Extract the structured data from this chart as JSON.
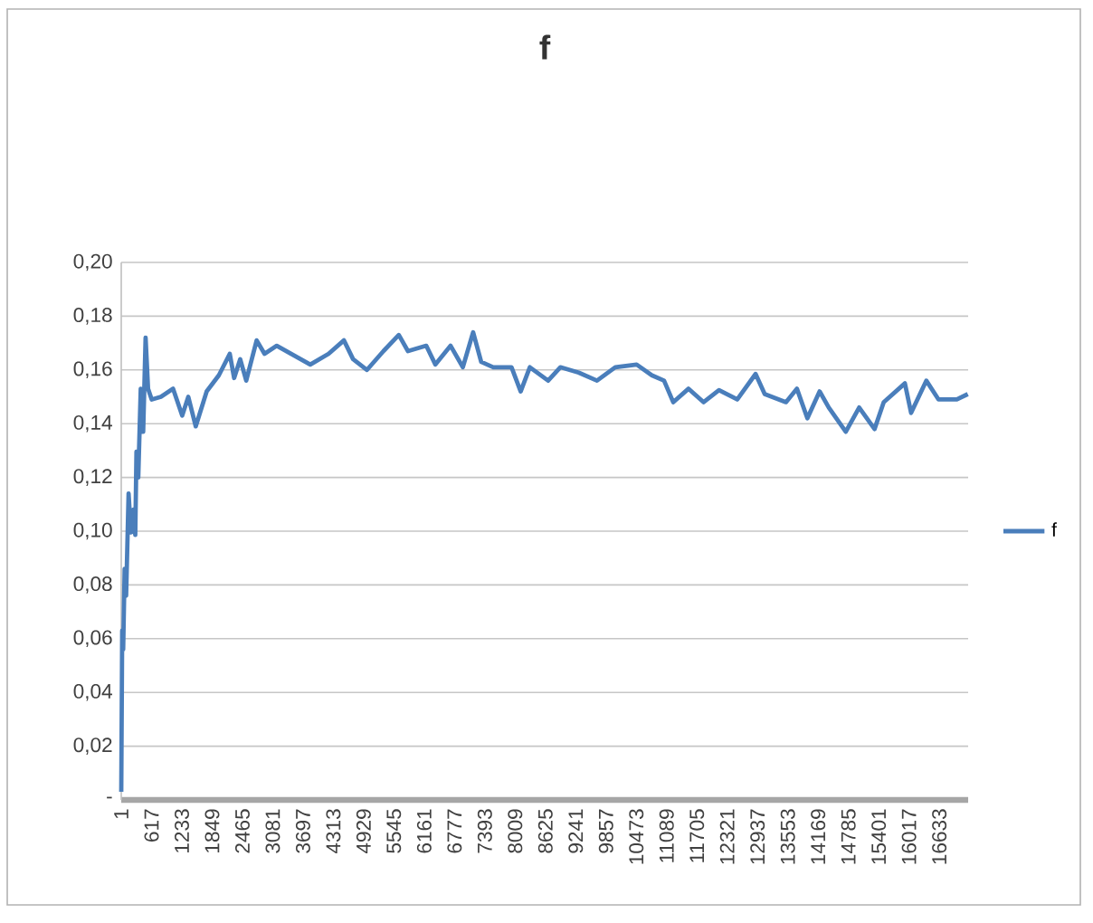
{
  "chart_data": {
    "type": "line",
    "title": "f",
    "x": [
      1,
      20,
      40,
      70,
      100,
      150,
      198,
      249,
      286,
      310,
      347,
      397,
      447,
      496,
      546,
      620,
      808,
      1054,
      1240,
      1364,
      1515,
      1738,
      1985,
      2207,
      2296,
      2419,
      2542,
      2754,
      2914,
      3163,
      3844,
      4216,
      4528,
      4714,
      4997,
      5332,
      5644,
      5830,
      6202,
      6388,
      6697,
      6946,
      7155,
      7319,
      7564,
      7936,
      8122,
      8308,
      8680,
      8929,
      9301,
      9673,
      10045,
      10480,
      10789,
      11037,
      11223,
      11533,
      11842,
      12154,
      12526,
      12898,
      13084,
      13516,
      13739,
      13951,
      14200,
      14386,
      14732,
      15004,
      15317,
      15503,
      15934,
      16060,
      16369,
      16618,
      16990,
      17213
    ],
    "series": [
      {
        "name": "f",
        "color": "#4a7ebb",
        "values": [
          0.003,
          0.063,
          0.056,
          0.086,
          0.076,
          0.114,
          0.0995,
          0.108,
          0.0986,
          0.1296,
          0.12,
          0.153,
          0.137,
          0.172,
          0.153,
          0.149,
          0.15,
          0.153,
          0.143,
          0.15,
          0.139,
          0.152,
          0.158,
          0.166,
          0.157,
          0.164,
          0.156,
          0.171,
          0.166,
          0.169,
          0.162,
          0.166,
          0.171,
          0.164,
          0.16,
          0.167,
          0.173,
          0.167,
          0.169,
          0.162,
          0.169,
          0.161,
          0.174,
          0.163,
          0.161,
          0.161,
          0.152,
          0.161,
          0.156,
          0.161,
          0.159,
          0.156,
          0.161,
          0.162,
          0.158,
          0.156,
          0.148,
          0.153,
          0.148,
          0.1525,
          0.149,
          0.1585,
          0.151,
          0.148,
          0.153,
          0.142,
          0.152,
          0.146,
          0.137,
          0.146,
          0.138,
          0.148,
          0.155,
          0.144,
          0.156,
          0.149,
          0.149,
          0.151
        ]
      }
    ],
    "xlim": [
      1,
      17220
    ],
    "xticks": [
      1,
      617,
      1233,
      1849,
      2465,
      3081,
      3697,
      4313,
      4929,
      5545,
      6161,
      6777,
      7393,
      8009,
      8625,
      9241,
      9857,
      10473,
      11089,
      11705,
      12321,
      12937,
      13553,
      14169,
      14785,
      15401,
      16017,
      16633
    ],
    "ylim": [
      0,
      0.2
    ],
    "yticks": [
      {
        "value": 0,
        "label": "-"
      },
      {
        "value": 0.02,
        "label": "0,02"
      },
      {
        "value": 0.04,
        "label": "0,04"
      },
      {
        "value": 0.06,
        "label": "0,06"
      },
      {
        "value": 0.08,
        "label": "0,08"
      },
      {
        "value": 0.1,
        "label": "0,10"
      },
      {
        "value": 0.12,
        "label": "0,12"
      },
      {
        "value": 0.14,
        "label": "0,14"
      },
      {
        "value": 0.16,
        "label": "0,16"
      },
      {
        "value": 0.18,
        "label": "0,18"
      },
      {
        "value": 0.2,
        "label": "0,20"
      }
    ],
    "grid": "y",
    "legend": "right",
    "marker": "none",
    "line_style": "solid"
  }
}
